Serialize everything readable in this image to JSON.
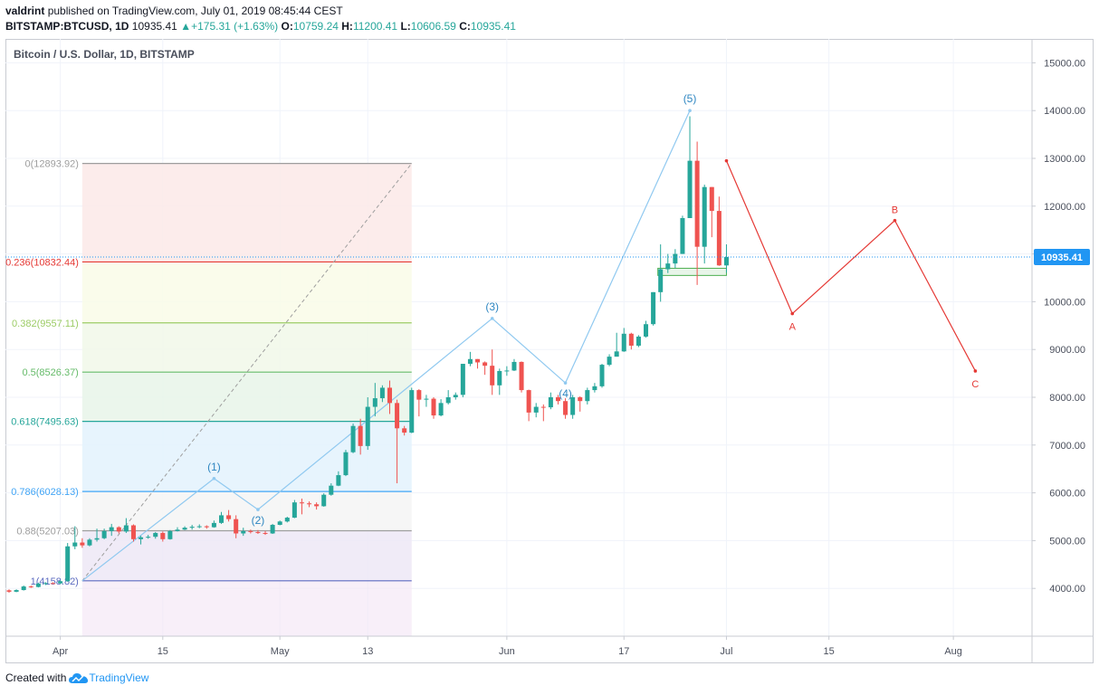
{
  "header": {
    "author": "valdrint",
    "published_text": "published on TradingView.com, July 01, 2019 08:45:44 CEST",
    "symbol": "BITSTAMP:BTCUSD, 1D",
    "last": "10935.41",
    "change": "+175.31 (+1.63%)",
    "o_label": "O:",
    "o_value": "10759.24",
    "h_label": "H:",
    "h_value": "11200.41",
    "l_label": "L:",
    "l_value": "10606.59",
    "c_label": "C:",
    "c_value": "10935.41"
  },
  "footer": {
    "created_with": "Created with",
    "brand": "TradingView"
  },
  "colors": {
    "up": "#26a69a",
    "down": "#ef5350",
    "wave": "#90c9f0",
    "forecast": "#e53935",
    "price_line": "#2196f3"
  },
  "chart_data": {
    "type": "candlestick",
    "title": "Bitcoin / U.S. Dollar, 1D, BITSTAMP",
    "y_axis": {
      "range": [
        3000,
        15500
      ],
      "ticks": [
        "15000.00",
        "14000.00",
        "13000.00",
        "12000.00",
        "11000.00",
        "10000.00",
        "9000.00",
        "8000.00",
        "7000.00",
        "6000.00",
        "5000.00",
        "4000.00"
      ]
    },
    "x_axis": {
      "range": [
        "2019-03-25",
        "2019-08-11"
      ],
      "ticks": [
        {
          "date": "2019-04-01",
          "label": "Apr"
        },
        {
          "date": "2019-04-15",
          "label": "15"
        },
        {
          "date": "2019-05-01",
          "label": "May"
        },
        {
          "date": "2019-05-13",
          "label": "13"
        },
        {
          "date": "2019-06-01",
          "label": "Jun"
        },
        {
          "date": "2019-06-17",
          "label": "17"
        },
        {
          "date": "2019-07-01",
          "label": "Jul"
        },
        {
          "date": "2019-07-15",
          "label": "15"
        },
        {
          "date": "2019-08-01",
          "label": "Aug"
        }
      ]
    },
    "last_price": {
      "value": 10935.41,
      "label": "10935.41"
    },
    "candles": [
      {
        "date": "2019-03-25",
        "o": 3960,
        "h": 3980,
        "l": 3910,
        "c": 3930
      },
      {
        "date": "2019-03-26",
        "o": 3930,
        "h": 3980,
        "l": 3920,
        "c": 3965
      },
      {
        "date": "2019-03-27",
        "o": 3965,
        "h": 4060,
        "l": 3955,
        "c": 4040
      },
      {
        "date": "2019-03-28",
        "o": 4040,
        "h": 4060,
        "l": 4010,
        "c": 4030
      },
      {
        "date": "2019-03-29",
        "o": 4030,
        "h": 4120,
        "l": 4020,
        "c": 4100
      },
      {
        "date": "2019-03-30",
        "o": 4100,
        "h": 4130,
        "l": 4070,
        "c": 4110
      },
      {
        "date": "2019-03-31",
        "o": 4110,
        "h": 4130,
        "l": 4090,
        "c": 4105
      },
      {
        "date": "2019-04-01",
        "o": 4105,
        "h": 4170,
        "l": 4090,
        "c": 4150
      },
      {
        "date": "2019-04-02",
        "o": 4150,
        "h": 4950,
        "l": 4140,
        "c": 4880
      },
      {
        "date": "2019-04-03",
        "o": 4880,
        "h": 5300,
        "l": 4820,
        "c": 4960
      },
      {
        "date": "2019-04-04",
        "o": 4960,
        "h": 5050,
        "l": 4850,
        "c": 4900
      },
      {
        "date": "2019-04-05",
        "o": 4900,
        "h": 5050,
        "l": 4880,
        "c": 5020
      },
      {
        "date": "2019-04-06",
        "o": 5020,
        "h": 5250,
        "l": 4980,
        "c": 5050
      },
      {
        "date": "2019-04-07",
        "o": 5050,
        "h": 5250,
        "l": 5030,
        "c": 5200
      },
      {
        "date": "2019-04-08",
        "o": 5200,
        "h": 5350,
        "l": 5100,
        "c": 5280
      },
      {
        "date": "2019-04-09",
        "o": 5280,
        "h": 5300,
        "l": 5150,
        "c": 5190
      },
      {
        "date": "2019-04-10",
        "o": 5190,
        "h": 5470,
        "l": 5160,
        "c": 5320
      },
      {
        "date": "2019-04-11",
        "o": 5320,
        "h": 5340,
        "l": 4980,
        "c": 5030
      },
      {
        "date": "2019-04-12",
        "o": 5030,
        "h": 5100,
        "l": 4920,
        "c": 5070
      },
      {
        "date": "2019-04-13",
        "o": 5070,
        "h": 5120,
        "l": 5040,
        "c": 5080
      },
      {
        "date": "2019-04-14",
        "o": 5080,
        "h": 5180,
        "l": 5040,
        "c": 5160
      },
      {
        "date": "2019-04-15",
        "o": 5160,
        "h": 5190,
        "l": 4980,
        "c": 5030
      },
      {
        "date": "2019-04-16",
        "o": 5030,
        "h": 5220,
        "l": 5020,
        "c": 5200
      },
      {
        "date": "2019-04-17",
        "o": 5200,
        "h": 5280,
        "l": 5190,
        "c": 5230
      },
      {
        "date": "2019-04-18",
        "o": 5230,
        "h": 5300,
        "l": 5220,
        "c": 5270
      },
      {
        "date": "2019-04-19",
        "o": 5270,
        "h": 5330,
        "l": 5230,
        "c": 5290
      },
      {
        "date": "2019-04-20",
        "o": 5290,
        "h": 5340,
        "l": 5260,
        "c": 5300
      },
      {
        "date": "2019-04-21",
        "o": 5300,
        "h": 5320,
        "l": 5250,
        "c": 5280
      },
      {
        "date": "2019-04-22",
        "o": 5280,
        "h": 5420,
        "l": 5270,
        "c": 5370
      },
      {
        "date": "2019-04-23",
        "o": 5370,
        "h": 5600,
        "l": 5350,
        "c": 5530
      },
      {
        "date": "2019-04-24",
        "o": 5530,
        "h": 5640,
        "l": 5400,
        "c": 5450
      },
      {
        "date": "2019-04-25",
        "o": 5450,
        "h": 5530,
        "l": 5050,
        "c": 5150
      },
      {
        "date": "2019-04-26",
        "o": 5150,
        "h": 5270,
        "l": 5100,
        "c": 5200
      },
      {
        "date": "2019-04-27",
        "o": 5200,
        "h": 5230,
        "l": 5150,
        "c": 5180
      },
      {
        "date": "2019-04-28",
        "o": 5180,
        "h": 5220,
        "l": 5140,
        "c": 5160
      },
      {
        "date": "2019-04-29",
        "o": 5160,
        "h": 5200,
        "l": 5120,
        "c": 5150
      },
      {
        "date": "2019-04-30",
        "o": 5150,
        "h": 5350,
        "l": 5140,
        "c": 5330
      },
      {
        "date": "2019-05-01",
        "o": 5330,
        "h": 5420,
        "l": 5320,
        "c": 5400
      },
      {
        "date": "2019-05-02",
        "o": 5400,
        "h": 5500,
        "l": 5380,
        "c": 5480
      },
      {
        "date": "2019-05-03",
        "o": 5480,
        "h": 5850,
        "l": 5470,
        "c": 5800
      },
      {
        "date": "2019-05-04",
        "o": 5800,
        "h": 5880,
        "l": 5550,
        "c": 5780
      },
      {
        "date": "2019-05-05",
        "o": 5780,
        "h": 5820,
        "l": 5700,
        "c": 5760
      },
      {
        "date": "2019-05-06",
        "o": 5760,
        "h": 5800,
        "l": 5650,
        "c": 5720
      },
      {
        "date": "2019-05-07",
        "o": 5720,
        "h": 5990,
        "l": 5710,
        "c": 5960
      },
      {
        "date": "2019-05-08",
        "o": 5960,
        "h": 6200,
        "l": 5940,
        "c": 6150
      },
      {
        "date": "2019-05-09",
        "o": 6150,
        "h": 6450,
        "l": 6140,
        "c": 6370
      },
      {
        "date": "2019-05-10",
        "o": 6370,
        "h": 6900,
        "l": 6350,
        "c": 6850
      },
      {
        "date": "2019-05-11",
        "o": 6850,
        "h": 7450,
        "l": 6830,
        "c": 7400
      },
      {
        "date": "2019-05-12",
        "o": 7400,
        "h": 7550,
        "l": 6800,
        "c": 6980
      },
      {
        "date": "2019-05-13",
        "o": 6980,
        "h": 8000,
        "l": 6900,
        "c": 7800
      },
      {
        "date": "2019-05-14",
        "o": 7800,
        "h": 8300,
        "l": 7600,
        "c": 7980
      },
      {
        "date": "2019-05-15",
        "o": 7980,
        "h": 8250,
        "l": 7900,
        "c": 8200
      },
      {
        "date": "2019-05-16",
        "o": 8200,
        "h": 8350,
        "l": 7650,
        "c": 7880
      },
      {
        "date": "2019-05-17",
        "o": 7880,
        "h": 7950,
        "l": 6200,
        "c": 7350
      },
      {
        "date": "2019-05-18",
        "o": 7350,
        "h": 7400,
        "l": 7200,
        "c": 7260
      },
      {
        "date": "2019-05-19",
        "o": 7260,
        "h": 8200,
        "l": 7250,
        "c": 8150
      },
      {
        "date": "2019-05-20",
        "o": 8150,
        "h": 8170,
        "l": 7600,
        "c": 7950
      },
      {
        "date": "2019-05-21",
        "o": 7950,
        "h": 8050,
        "l": 7800,
        "c": 7970
      },
      {
        "date": "2019-05-22",
        "o": 7970,
        "h": 8000,
        "l": 7550,
        "c": 7620
      },
      {
        "date": "2019-05-23",
        "o": 7620,
        "h": 7960,
        "l": 7600,
        "c": 7880
      },
      {
        "date": "2019-05-24",
        "o": 7880,
        "h": 8150,
        "l": 7850,
        "c": 8000
      },
      {
        "date": "2019-05-25",
        "o": 8000,
        "h": 8100,
        "l": 7950,
        "c": 8050
      },
      {
        "date": "2019-05-26",
        "o": 8050,
        "h": 8700,
        "l": 8000,
        "c": 8700
      },
      {
        "date": "2019-05-27",
        "o": 8700,
        "h": 8950,
        "l": 8650,
        "c": 8800
      },
      {
        "date": "2019-05-28",
        "o": 8800,
        "h": 8800,
        "l": 8600,
        "c": 8730
      },
      {
        "date": "2019-05-29",
        "o": 8730,
        "h": 8750,
        "l": 8470,
        "c": 8660
      },
      {
        "date": "2019-05-30",
        "o": 8660,
        "h": 9000,
        "l": 8050,
        "c": 8250
      },
      {
        "date": "2019-05-31",
        "o": 8250,
        "h": 8600,
        "l": 8050,
        "c": 8550
      },
      {
        "date": "2019-06-01",
        "o": 8550,
        "h": 8650,
        "l": 8450,
        "c": 8560
      },
      {
        "date": "2019-06-02",
        "o": 8560,
        "h": 8800,
        "l": 8550,
        "c": 8740
      },
      {
        "date": "2019-06-03",
        "o": 8740,
        "h": 8750,
        "l": 8100,
        "c": 8150
      },
      {
        "date": "2019-06-04",
        "o": 8150,
        "h": 8160,
        "l": 7500,
        "c": 7680
      },
      {
        "date": "2019-06-05",
        "o": 7680,
        "h": 7880,
        "l": 7580,
        "c": 7800
      },
      {
        "date": "2019-06-06",
        "o": 7800,
        "h": 7850,
        "l": 7500,
        "c": 7790
      },
      {
        "date": "2019-06-07",
        "o": 7790,
        "h": 8100,
        "l": 7750,
        "c": 8000
      },
      {
        "date": "2019-06-08",
        "o": 8000,
        "h": 8050,
        "l": 7850,
        "c": 7920
      },
      {
        "date": "2019-06-09",
        "o": 7920,
        "h": 7980,
        "l": 7550,
        "c": 7630
      },
      {
        "date": "2019-06-10",
        "o": 7630,
        "h": 8050,
        "l": 7550,
        "c": 8000
      },
      {
        "date": "2019-06-11",
        "o": 8000,
        "h": 8020,
        "l": 7700,
        "c": 7920
      },
      {
        "date": "2019-06-12",
        "o": 7920,
        "h": 8200,
        "l": 7850,
        "c": 8150
      },
      {
        "date": "2019-06-13",
        "o": 8150,
        "h": 8300,
        "l": 8100,
        "c": 8230
      },
      {
        "date": "2019-06-14",
        "o": 8230,
        "h": 8700,
        "l": 8200,
        "c": 8680
      },
      {
        "date": "2019-06-15",
        "o": 8680,
        "h": 8900,
        "l": 8650,
        "c": 8850
      },
      {
        "date": "2019-06-16",
        "o": 8850,
        "h": 9350,
        "l": 8850,
        "c": 8960
      },
      {
        "date": "2019-06-17",
        "o": 8960,
        "h": 9450,
        "l": 8950,
        "c": 9330
      },
      {
        "date": "2019-06-18",
        "o": 9330,
        "h": 9350,
        "l": 9000,
        "c": 9080
      },
      {
        "date": "2019-06-19",
        "o": 9080,
        "h": 9300,
        "l": 9050,
        "c": 9270
      },
      {
        "date": "2019-06-20",
        "o": 9270,
        "h": 9600,
        "l": 9250,
        "c": 9530
      },
      {
        "date": "2019-06-21",
        "o": 9530,
        "h": 10200,
        "l": 9500,
        "c": 10200
      },
      {
        "date": "2019-06-22",
        "o": 10200,
        "h": 11200,
        "l": 10000,
        "c": 10680
      },
      {
        "date": "2019-06-23",
        "o": 10680,
        "h": 11000,
        "l": 10600,
        "c": 10800
      },
      {
        "date": "2019-06-24",
        "o": 10800,
        "h": 11100,
        "l": 10700,
        "c": 11000
      },
      {
        "date": "2019-06-25",
        "o": 11000,
        "h": 11800,
        "l": 11000,
        "c": 11750
      },
      {
        "date": "2019-06-26",
        "o": 11750,
        "h": 13880,
        "l": 11750,
        "c": 12950
      },
      {
        "date": "2019-06-27",
        "o": 12950,
        "h": 13350,
        "l": 10350,
        "c": 11150
      },
      {
        "date": "2019-06-28",
        "o": 11150,
        "h": 12450,
        "l": 10800,
        "c": 12400
      },
      {
        "date": "2019-06-29",
        "o": 12400,
        "h": 12400,
        "l": 11350,
        "c": 11900
      },
      {
        "date": "2019-06-30",
        "o": 11900,
        "h": 12200,
        "l": 10750,
        "c": 10760
      },
      {
        "date": "2019-07-01",
        "o": 10759.24,
        "h": 11200.41,
        "l": 10606.59,
        "c": 10935.41
      }
    ],
    "fibonacci": {
      "start_date": "2019-04-04",
      "end_date": "2019-05-19",
      "levels": [
        {
          "label": "0(12893.92)",
          "value": 12893.92,
          "color": "#9e9e9e",
          "fill": "#fbe9e7"
        },
        {
          "label": "0.236(10832.44)",
          "value": 10832.44,
          "color": "#e53935",
          "fill": "#f9fbe7"
        },
        {
          "label": "0.382(9557.11)",
          "value": 9557.11,
          "color": "#9ccc65",
          "fill": "#f1f8e9"
        },
        {
          "label": "0.5(8526.37)",
          "value": 8526.37,
          "color": "#66bb6a",
          "fill": "#e8f5e9"
        },
        {
          "label": "0.618(7495.63)",
          "value": 7495.63,
          "color": "#26a69a",
          "fill": "#e3f2fd"
        },
        {
          "label": "0.786(6028.13)",
          "value": 6028.13,
          "color": "#42a5f5",
          "fill": "#f5f5f5"
        },
        {
          "label": "0.88(5207.03)",
          "value": 5207.03,
          "color": "#9e9e9e",
          "fill": "#ede7f6"
        },
        {
          "label": "1(4158.82)",
          "value": 4158.82,
          "color": "#5c6bc0",
          "fill": null
        }
      ]
    },
    "wave_count": [
      {
        "label": "",
        "date": "2019-04-04",
        "value": 4158.82
      },
      {
        "label": "(1)",
        "date": "2019-04-22",
        "value": 6300
      },
      {
        "label": "(2)",
        "date": "2019-04-28",
        "value": 5650
      },
      {
        "label": "(3)",
        "date": "2019-05-30",
        "value": 9650
      },
      {
        "label": "(4)",
        "date": "2019-06-09",
        "value": 8300
      },
      {
        "label": "(5)",
        "date": "2019-06-26",
        "value": 14000
      }
    ],
    "forecast_path": [
      {
        "label": "",
        "date": "2019-07-01",
        "value": 12950
      },
      {
        "label": "A",
        "date": "2019-07-10",
        "value": 9750
      },
      {
        "label": "B",
        "date": "2019-07-24",
        "value": 11700
      },
      {
        "label": "C",
        "date": "2019-08-04",
        "value": 8550
      }
    ],
    "support_box": {
      "start_date": "2019-06-22",
      "end_date": "2019-07-01",
      "top": 10700,
      "bottom": 10550
    }
  }
}
